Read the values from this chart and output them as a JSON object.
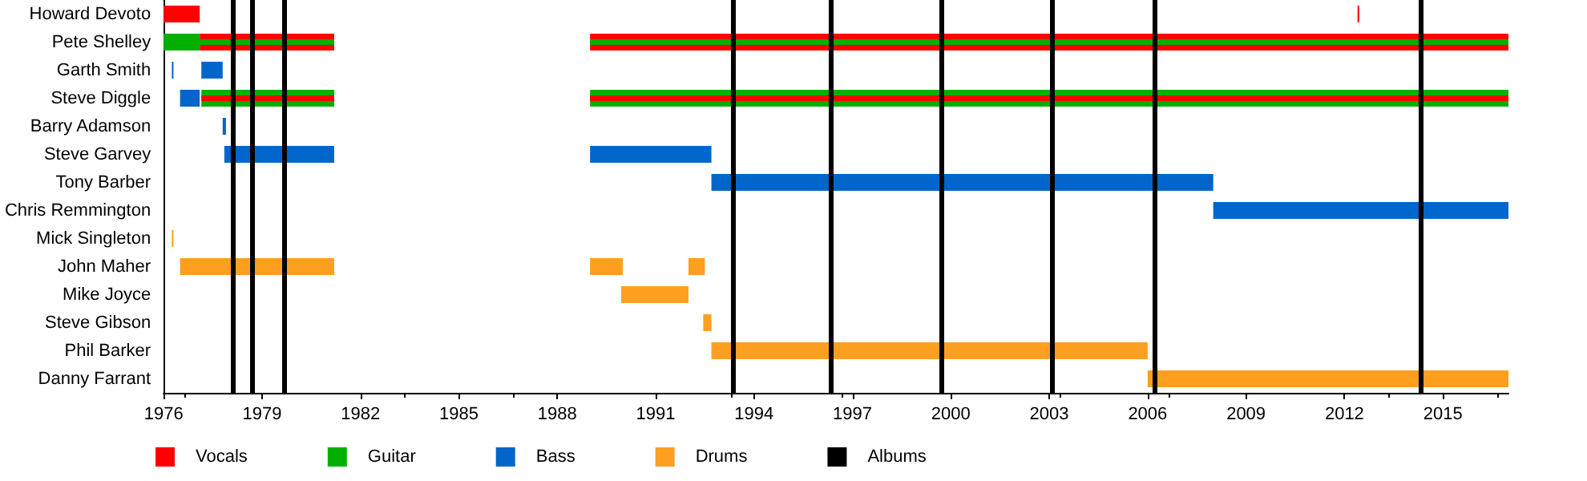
{
  "chart_data": {
    "type": "bar",
    "orientation": "horizontal",
    "categories": [
      "Howard Devoto",
      "Pete Shelley",
      "Garth Smith",
      "Steve Diggle",
      "Barry Adamson",
      "Steve Garvey",
      "Tony Barber",
      "Chris Remmington",
      "Mick Singleton",
      "John Maher",
      "Mike Joyce",
      "Steve Gibson",
      "Phil Barker",
      "Danny Farrant"
    ],
    "series": [
      {
        "name": "Vocals",
        "color": "#ff0000",
        "base": [
          1976,
          1977.1,
          null,
          null,
          null,
          null,
          null,
          null,
          null,
          null,
          null,
          null,
          null,
          null
        ],
        "values": [
          1.1,
          4.1,
          null,
          null,
          null,
          null,
          null,
          null,
          null,
          null,
          null,
          null,
          null,
          null
        ]
      },
      {
        "name": "Guitar",
        "color": "#00b000",
        "base": [
          null,
          1976,
          null,
          1977.15,
          null,
          null,
          null,
          null,
          null,
          null,
          null,
          null,
          null,
          null
        ],
        "values": [
          null,
          1.1,
          null,
          4.05,
          null,
          null,
          null,
          null,
          null,
          null,
          null,
          null,
          null,
          null
        ]
      },
      {
        "color": "#00b000",
        "base": [
          null,
          null,
          null,
          1989,
          null,
          null,
          null,
          null,
          null,
          null,
          null,
          null,
          null,
          null
        ],
        "values": [
          null,
          null,
          null,
          28,
          null,
          null,
          null,
          null,
          null,
          null,
          null,
          null,
          null,
          null
        ]
      },
      {
        "color": "#ff0000",
        "base": [
          2012.4,
          1989,
          null,
          1977.15,
          null,
          null,
          null,
          null,
          null,
          null,
          null,
          null,
          null,
          null
        ],
        "values": [
          0.05,
          28,
          null,
          4.05,
          null,
          null,
          null,
          null,
          null,
          null,
          null,
          null,
          null,
          null
        ]
      },
      {
        "color": "#00b000",
        "base": [
          null,
          1977.1,
          null,
          null,
          null,
          null,
          null,
          null,
          null,
          null,
          null,
          null,
          null,
          null
        ],
        "values": [
          null,
          4.1,
          null,
          null,
          null,
          null,
          null,
          null,
          null,
          null,
          null,
          null,
          null,
          null
        ]
      },
      {
        "color": "#00b000",
        "base": [
          null,
          1989,
          null,
          null,
          null,
          null,
          null,
          null,
          null,
          null,
          null,
          null,
          null,
          null
        ],
        "values": [
          null,
          28,
          null,
          null,
          null,
          null,
          null,
          null,
          null,
          null,
          null,
          null,
          null,
          null
        ]
      },
      {
        "color": "#ff0000",
        "base": [
          null,
          null,
          null,
          1989,
          null,
          null,
          null,
          null,
          null,
          null,
          null,
          null,
          null,
          null
        ],
        "values": [
          null,
          null,
          null,
          28,
          null,
          null,
          null,
          null,
          null,
          null,
          null,
          null,
          null,
          null
        ]
      },
      {
        "name": "Bass",
        "color": "#0066cc",
        "base": [
          null,
          null,
          1976.25,
          1976.5,
          1977.8,
          1977.85,
          null,
          null,
          null,
          null,
          null,
          null,
          null,
          null
        ],
        "values": [
          null,
          null,
          0.05,
          0.6,
          0.1,
          3.35,
          null,
          null,
          null,
          null,
          null,
          null,
          null,
          null
        ]
      },
      {
        "color": "#0066cc",
        "base": [
          null,
          null,
          1977.15,
          null,
          null,
          1989,
          1992.7,
          2008,
          null,
          null,
          null,
          null,
          null,
          null
        ],
        "values": [
          null,
          null,
          0.65,
          null,
          null,
          3.7,
          15.3,
          9,
          null,
          null,
          null,
          null,
          null,
          null
        ]
      },
      {
        "name": "Drums",
        "color": "#ff9f1f",
        "base": [
          null,
          null,
          null,
          null,
          null,
          null,
          null,
          null,
          1976.25,
          1976.5,
          1989.95,
          1992.45,
          1992.7,
          2006
        ],
        "values": [
          null,
          null,
          null,
          null,
          null,
          null,
          null,
          null,
          0.05,
          4.7,
          2.05,
          0.25,
          13.3,
          11
        ]
      },
      {
        "color": "#ff9f1f",
        "base": [
          null,
          null,
          null,
          null,
          null,
          null,
          null,
          null,
          null,
          1989,
          null,
          null,
          null,
          null
        ],
        "values": [
          null,
          null,
          null,
          null,
          null,
          null,
          null,
          null,
          null,
          1,
          null,
          null,
          null,
          null
        ]
      },
      {
        "color": "#ff9f1f",
        "base": [
          null,
          null,
          null,
          null,
          null,
          null,
          null,
          null,
          null,
          1992,
          null,
          null,
          null,
          null
        ],
        "values": [
          null,
          null,
          null,
          null,
          null,
          null,
          null,
          null,
          null,
          0.5,
          null,
          null,
          null,
          null
        ]
      }
    ],
    "xlim": [
      1976,
      2017
    ],
    "xticks": [
      1976,
      1979,
      1982,
      1985,
      1988,
      1991,
      1994,
      1997,
      2000,
      2003,
      2006,
      2009,
      2012,
      2015
    ],
    "ref_lines": [
      {
        "axis": "x",
        "value": 1978.13,
        "label": "Albums",
        "color": "#000000"
      },
      {
        "axis": "x",
        "value": 1978.7,
        "color": "#000000"
      },
      {
        "axis": "x",
        "value": 1979.66,
        "color": "#000000"
      },
      {
        "axis": "x",
        "value": 1993.37,
        "color": "#000000"
      },
      {
        "axis": "x",
        "value": 1996.36,
        "color": "#000000"
      },
      {
        "axis": "x",
        "value": 1999.7,
        "color": "#000000"
      },
      {
        "axis": "x",
        "value": 2003.1,
        "color": "#000000"
      },
      {
        "axis": "x",
        "value": 2006.19,
        "color": "#000000"
      },
      {
        "axis": "x",
        "value": 2014.32,
        "color": "#000000"
      }
    ],
    "grid": false,
    "legend": "bottom left"
  }
}
